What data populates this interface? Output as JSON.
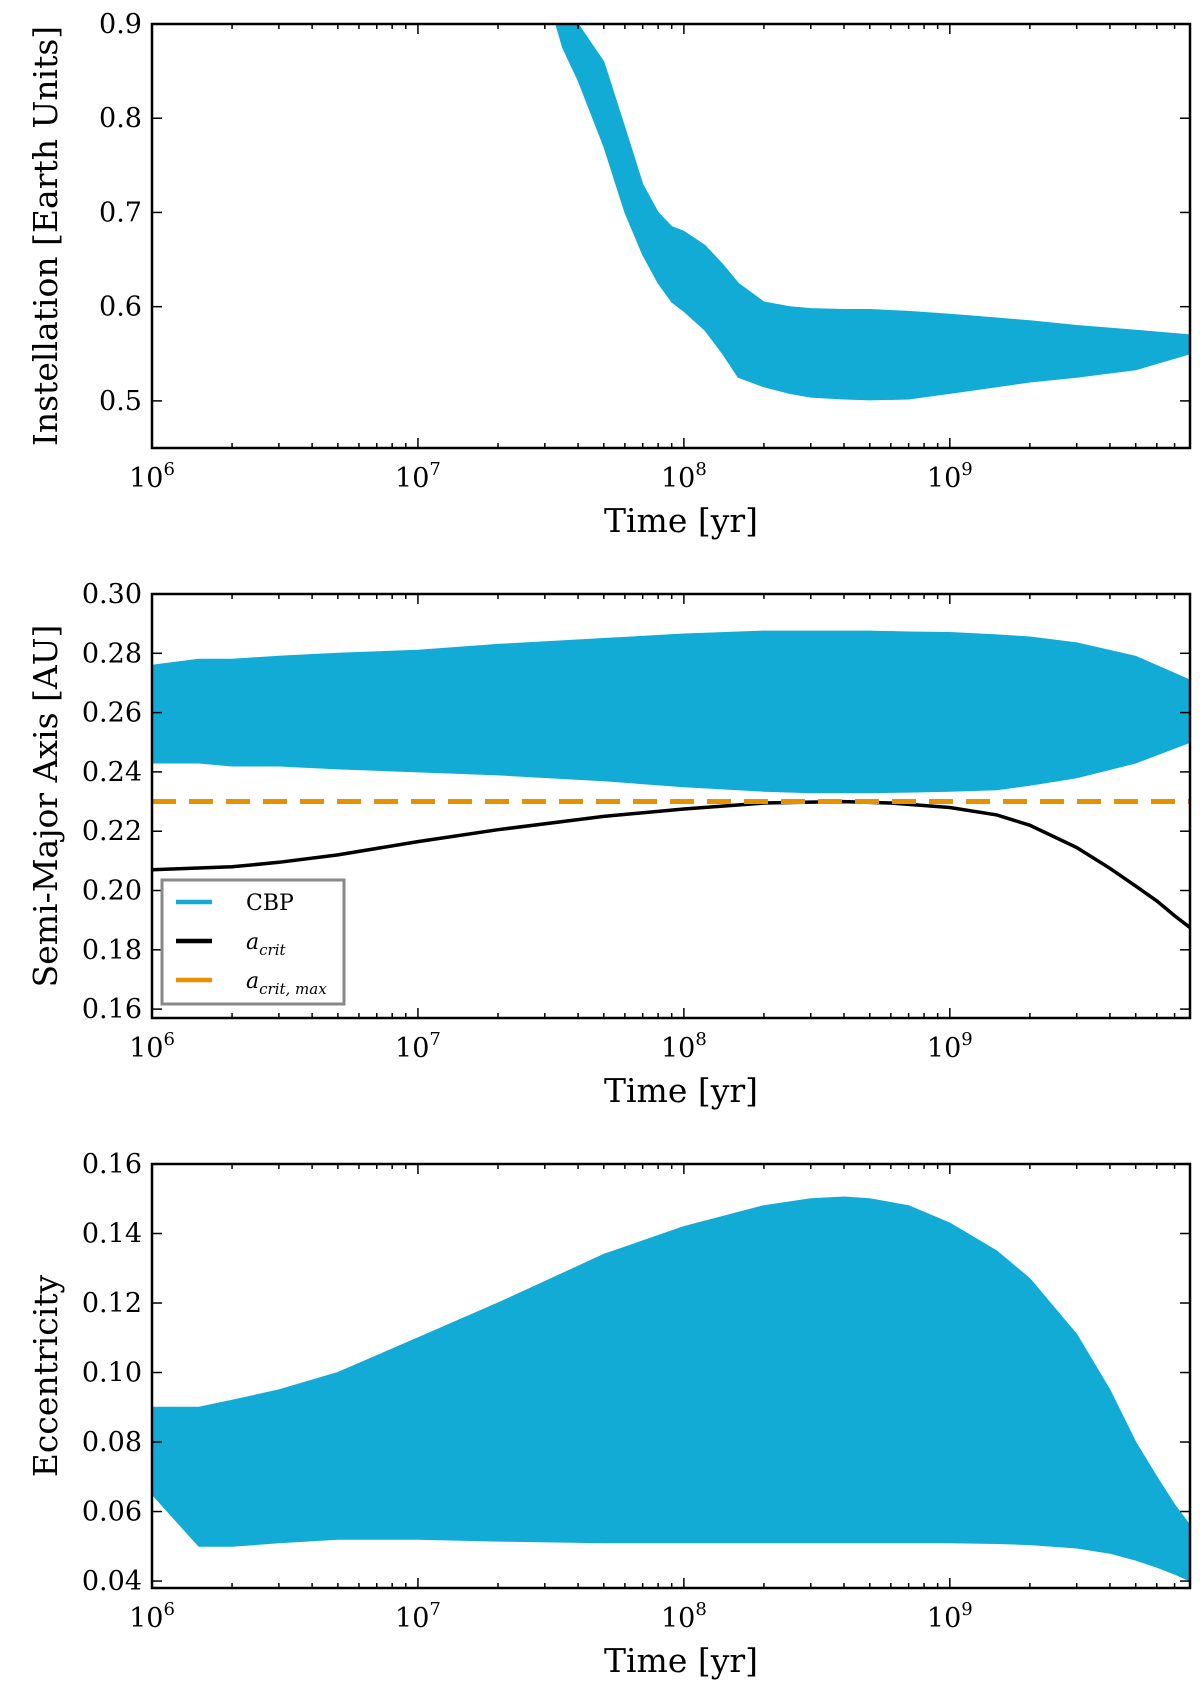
{
  "colors": {
    "cbp": "#12abd6",
    "acrit": "#000000",
    "acrit_max": "#e69200",
    "axes": "#000000",
    "legend_border": "#888888"
  },
  "chart_data": [
    {
      "type": "area",
      "id": "instellation",
      "xscale": "log",
      "xlim": [
        1000000,
        8000000000
      ],
      "ylim": [
        0.45,
        0.9
      ],
      "xlabel": "Time [yr]",
      "ylabel": "Instellation [Earth Units]",
      "xticks": [
        {
          "value": 1000000,
          "base": "10",
          "exp": "6"
        },
        {
          "value": 10000000,
          "base": "10",
          "exp": "7"
        },
        {
          "value": 100000000,
          "base": "10",
          "exp": "8"
        },
        {
          "value": 1000000000,
          "base": "10",
          "exp": "9"
        }
      ],
      "yticks": [
        {
          "value": 0.5,
          "label": "0.5"
        },
        {
          "value": 0.6,
          "label": "0.6"
        },
        {
          "value": 0.7,
          "label": "0.7"
        },
        {
          "value": 0.8,
          "label": "0.8"
        },
        {
          "value": 0.9,
          "label": "0.9"
        }
      ],
      "series": [
        {
          "name": "CBP",
          "kind": "band",
          "x": [
            33000000,
            35000000,
            40000000,
            50000000,
            60000000,
            70000000,
            80000000,
            90000000,
            100000000,
            120000000,
            140000000,
            160000000,
            200000000,
            250000000,
            300000000,
            400000000,
            500000000,
            700000000,
            1000000000,
            1500000000,
            2000000000,
            3000000000,
            5000000000,
            8000000000
          ],
          "low": [
            0.9,
            0.875,
            0.84,
            0.77,
            0.7,
            0.655,
            0.625,
            0.605,
            0.595,
            0.575,
            0.55,
            0.525,
            0.515,
            0.508,
            0.504,
            0.502,
            0.501,
            0.502,
            0.508,
            0.515,
            0.52,
            0.525,
            0.533,
            0.55
          ],
          "high": [
            0.9,
            0.9,
            0.9,
            0.86,
            0.79,
            0.73,
            0.7,
            0.685,
            0.68,
            0.665,
            0.645,
            0.625,
            0.605,
            0.6,
            0.598,
            0.597,
            0.597,
            0.595,
            0.592,
            0.588,
            0.585,
            0.58,
            0.575,
            0.57
          ]
        }
      ]
    },
    {
      "type": "line",
      "id": "semimajor",
      "xscale": "log",
      "xlim": [
        1000000,
        8000000000
      ],
      "ylim": [
        0.157,
        0.3
      ],
      "xlabel": "Time [yr]",
      "ylabel": "Semi-Major Axis [AU]",
      "xticks": [
        {
          "value": 1000000,
          "base": "10",
          "exp": "6"
        },
        {
          "value": 10000000,
          "base": "10",
          "exp": "7"
        },
        {
          "value": 100000000,
          "base": "10",
          "exp": "8"
        },
        {
          "value": 1000000000,
          "base": "10",
          "exp": "9"
        }
      ],
      "yticks": [
        {
          "value": 0.16,
          "label": "0.16"
        },
        {
          "value": 0.18,
          "label": "0.18"
        },
        {
          "value": 0.2,
          "label": "0.20"
        },
        {
          "value": 0.22,
          "label": "0.22"
        },
        {
          "value": 0.24,
          "label": "0.24"
        },
        {
          "value": 0.26,
          "label": "0.26"
        },
        {
          "value": 0.28,
          "label": "0.28"
        },
        {
          "value": 0.3,
          "label": "0.30"
        }
      ],
      "legend": {
        "placement": "lower-left",
        "entries": [
          {
            "label": "CBP",
            "sub": "",
            "series": "CBP"
          },
          {
            "label": "a",
            "sub": "crit",
            "series": "a_crit"
          },
          {
            "label": "a",
            "sub": "crit, max",
            "series": "a_crit_max"
          }
        ]
      },
      "series": [
        {
          "name": "CBP",
          "kind": "band",
          "x": [
            1000000,
            1500000,
            2000000,
            3000000,
            5000000,
            10000000,
            20000000,
            50000000,
            100000000,
            200000000,
            300000000,
            400000000,
            500000000,
            700000000,
            1000000000,
            1500000000,
            2000000000,
            3000000000,
            5000000000,
            8000000000
          ],
          "low": [
            0.243,
            0.243,
            0.242,
            0.242,
            0.241,
            0.24,
            0.239,
            0.237,
            0.235,
            0.2335,
            0.233,
            0.233,
            0.233,
            0.2332,
            0.2335,
            0.234,
            0.2355,
            0.238,
            0.243,
            0.25
          ],
          "high": [
            0.276,
            0.278,
            0.278,
            0.279,
            0.28,
            0.281,
            0.283,
            0.285,
            0.2865,
            0.2875,
            0.2875,
            0.2875,
            0.2875,
            0.2872,
            0.287,
            0.2862,
            0.2855,
            0.2835,
            0.279,
            0.271
          ]
        },
        {
          "name": "a_crit",
          "kind": "line",
          "x": [
            1000000,
            2000000,
            3000000,
            5000000,
            10000000,
            20000000,
            50000000,
            100000000,
            200000000,
            300000000,
            400000000,
            600000000,
            1000000000,
            1500000000,
            2000000000,
            3000000000,
            4000000000,
            5000000000,
            6000000000,
            7000000000,
            8000000000
          ],
          "y": [
            0.207,
            0.208,
            0.2095,
            0.212,
            0.2165,
            0.2205,
            0.225,
            0.2275,
            0.2295,
            0.2298,
            0.23,
            0.2295,
            0.228,
            0.2255,
            0.222,
            0.2145,
            0.2075,
            0.2015,
            0.1965,
            0.1915,
            0.1875
          ]
        },
        {
          "name": "a_crit_max",
          "kind": "dashed",
          "y": 0.23
        }
      ]
    },
    {
      "type": "area",
      "id": "eccentricity",
      "xscale": "log",
      "xlim": [
        1000000,
        8000000000
      ],
      "ylim": [
        0.038,
        0.16
      ],
      "xlabel": "Time [yr]",
      "ylabel": "Eccentricity",
      "xticks": [
        {
          "value": 1000000,
          "base": "10",
          "exp": "6"
        },
        {
          "value": 10000000,
          "base": "10",
          "exp": "7"
        },
        {
          "value": 100000000,
          "base": "10",
          "exp": "8"
        },
        {
          "value": 1000000000,
          "base": "10",
          "exp": "9"
        }
      ],
      "yticks": [
        {
          "value": 0.04,
          "label": "0.04"
        },
        {
          "value": 0.06,
          "label": "0.06"
        },
        {
          "value": 0.08,
          "label": "0.08"
        },
        {
          "value": 0.1,
          "label": "0.10"
        },
        {
          "value": 0.12,
          "label": "0.12"
        },
        {
          "value": 0.14,
          "label": "0.14"
        },
        {
          "value": 0.16,
          "label": "0.16"
        }
      ],
      "series": [
        {
          "name": "CBP",
          "kind": "band",
          "x": [
            1000000,
            1500000,
            2000000,
            3000000,
            5000000,
            10000000,
            20000000,
            50000000,
            100000000,
            200000000,
            300000000,
            400000000,
            500000000,
            700000000,
            1000000000,
            1500000000,
            2000000000,
            3000000000,
            4000000000,
            5000000000,
            6000000000,
            7000000000,
            8000000000
          ],
          "low": [
            0.065,
            0.05,
            0.05,
            0.051,
            0.052,
            0.052,
            0.0515,
            0.051,
            0.051,
            0.051,
            0.051,
            0.051,
            0.051,
            0.051,
            0.051,
            0.0508,
            0.0505,
            0.0495,
            0.048,
            0.046,
            0.044,
            0.042,
            0.04
          ],
          "high": [
            0.09,
            0.09,
            0.092,
            0.095,
            0.1,
            0.11,
            0.12,
            0.134,
            0.142,
            0.148,
            0.15,
            0.1505,
            0.15,
            0.148,
            0.143,
            0.135,
            0.127,
            0.111,
            0.095,
            0.08,
            0.07,
            0.062,
            0.056
          ]
        }
      ]
    }
  ]
}
